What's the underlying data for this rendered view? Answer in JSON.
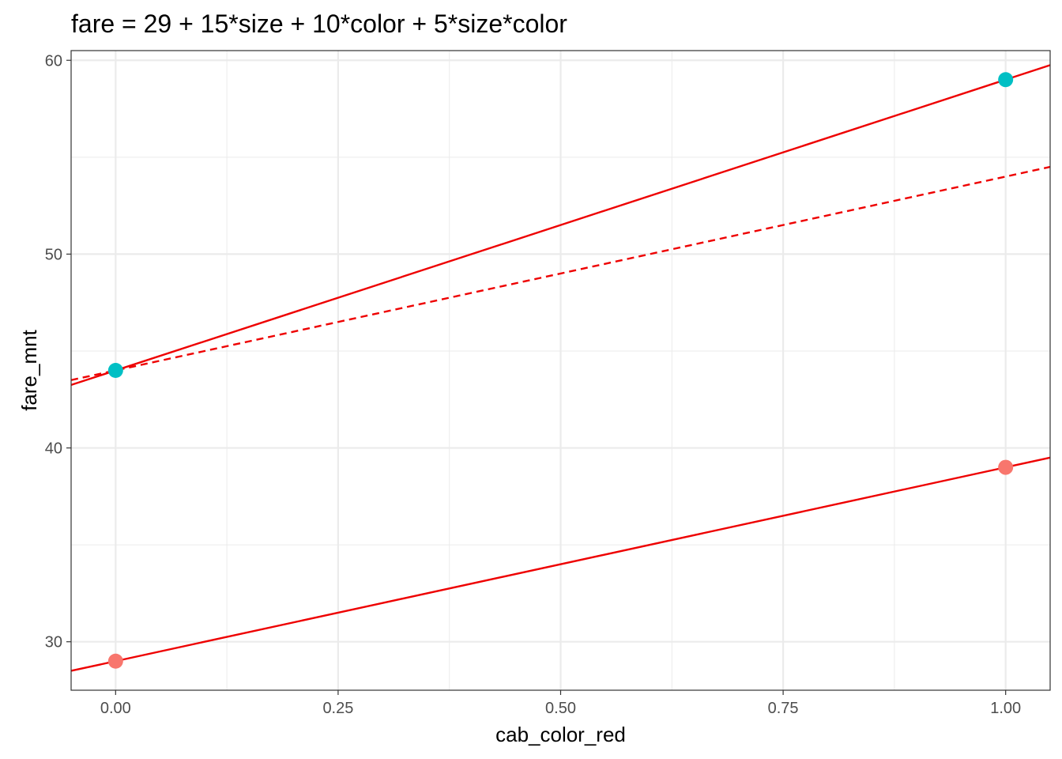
{
  "chart_data": {
    "type": "scatter",
    "title": "fare = 29 + 15*size + 10*color + 5*size*color",
    "xlabel": "cab_color_red",
    "ylabel": "fare_mnt",
    "xlim": [
      -0.05,
      1.05
    ],
    "ylim": [
      27.5,
      60.5
    ],
    "x_ticks": [
      0,
      0.25,
      0.5,
      0.75,
      1
    ],
    "x_tick_labels": [
      "0.00",
      "0.25",
      "0.50",
      "0.75",
      "1.00"
    ],
    "y_ticks": [
      30,
      40,
      50,
      60
    ],
    "y_tick_labels": [
      "30",
      "40",
      "50",
      "60"
    ],
    "grid": true,
    "legend": "none",
    "series": [
      {
        "color": "#00bfc4",
        "points": [
          {
            "x": 0,
            "y": 44
          },
          {
            "x": 1,
            "y": 59
          }
        ]
      },
      {
        "color": "#f8766d",
        "points": [
          {
            "x": 0,
            "y": 29
          },
          {
            "x": 1,
            "y": 39
          }
        ]
      }
    ],
    "lines": [
      {
        "intercept": 44,
        "slope": 15,
        "style": "solid",
        "color": "#ee0000"
      },
      {
        "intercept": 44,
        "slope": 10,
        "style": "dashed",
        "color": "#ee0000"
      },
      {
        "intercept": 29,
        "slope": 10,
        "style": "solid",
        "color": "#ee0000"
      }
    ]
  }
}
